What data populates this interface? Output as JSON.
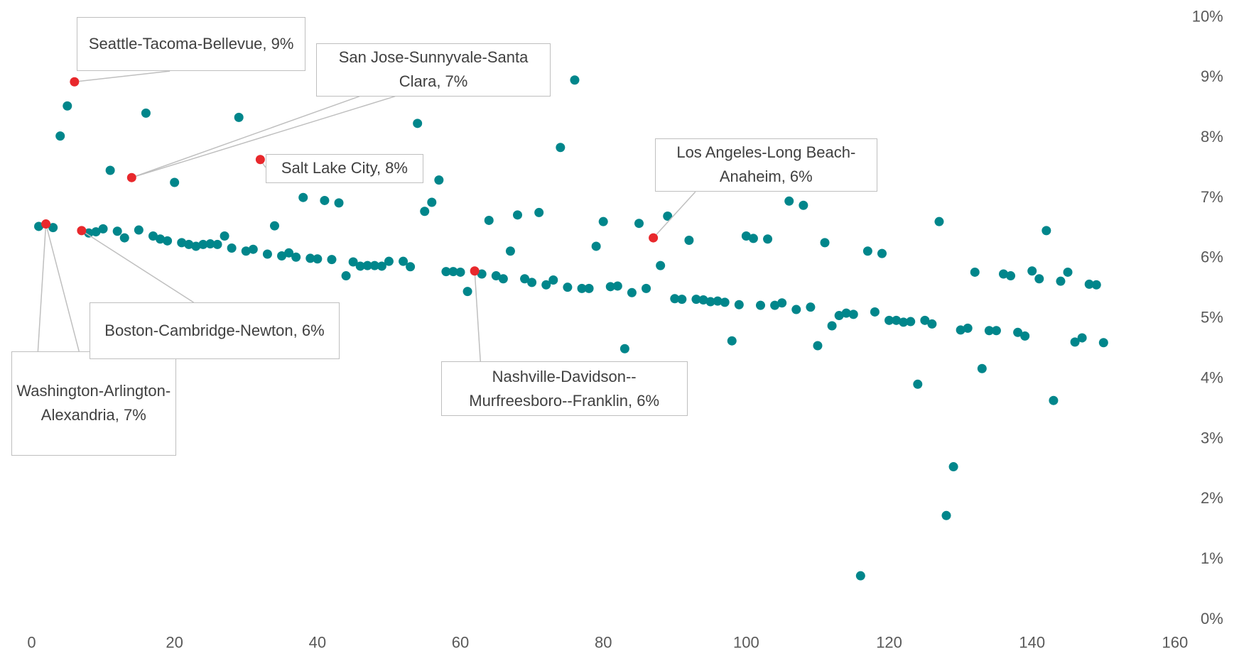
{
  "chart_data": {
    "type": "scatter",
    "xlim": [
      0,
      160
    ],
    "xticks": [
      0,
      20,
      40,
      60,
      80,
      100,
      120,
      140,
      160
    ],
    "ylim": [
      0,
      10
    ],
    "yticks": [
      {
        "value": 0,
        "label": "0%"
      },
      {
        "value": 1,
        "label": "1%"
      },
      {
        "value": 2,
        "label": "2%"
      },
      {
        "value": 3,
        "label": "3%"
      },
      {
        "value": 4,
        "label": "4%"
      },
      {
        "value": 5,
        "label": "5%"
      },
      {
        "value": 6,
        "label": "6%"
      },
      {
        "value": 7,
        "label": "7%"
      },
      {
        "value": 8,
        "label": "8%"
      },
      {
        "value": 9,
        "label": "9%"
      },
      {
        "value": 10,
        "label": "10%"
      }
    ],
    "grid": false,
    "series": [
      {
        "color": "#00868b",
        "x": [
          1,
          3,
          4,
          5,
          8,
          9,
          10,
          11,
          12,
          13,
          15,
          16,
          17,
          18,
          19,
          20,
          21,
          22,
          23,
          24,
          25,
          26,
          27,
          28,
          29,
          30,
          31,
          33,
          34,
          35,
          36,
          37,
          38,
          39,
          40,
          41,
          42,
          43,
          44,
          45,
          46,
          47,
          48,
          49,
          50,
          52,
          53,
          54,
          55,
          56,
          57,
          58,
          59,
          60,
          61,
          63,
          64,
          65,
          66,
          67,
          68,
          69,
          70,
          71,
          72,
          73,
          74,
          75,
          76,
          77,
          78,
          79,
          80,
          81,
          82,
          83,
          84,
          85,
          86,
          88,
          89,
          90,
          91,
          92,
          93,
          94,
          95,
          96,
          97,
          98,
          99,
          100,
          101,
          102,
          103,
          104,
          105,
          106,
          107,
          108,
          109,
          110,
          111,
          112,
          113,
          114,
          115,
          116,
          117,
          118,
          119,
          120,
          121,
          122,
          123,
          124,
          125,
          126,
          127,
          128,
          129,
          130,
          131,
          132,
          133,
          134,
          135,
          136,
          137,
          138,
          139,
          140,
          141,
          142,
          143,
          144,
          145,
          146,
          147,
          148,
          149,
          150
        ],
        "y": [
          6.53,
          6.51,
          8.03,
          8.53,
          6.42,
          6.44,
          6.49,
          7.46,
          6.45,
          6.34,
          6.47,
          8.41,
          6.37,
          6.32,
          6.29,
          7.26,
          6.26,
          6.23,
          6.2,
          6.23,
          6.24,
          6.23,
          6.37,
          6.17,
          8.34,
          6.12,
          6.15,
          6.07,
          6.54,
          6.04,
          6.09,
          6.02,
          7.01,
          6.0,
          5.99,
          6.96,
          5.98,
          6.92,
          5.71,
          5.94,
          5.87,
          5.88,
          5.88,
          5.87,
          5.95,
          5.95,
          5.86,
          8.24,
          6.78,
          6.93,
          7.3,
          5.78,
          5.78,
          5.77,
          5.45,
          5.74,
          6.63,
          5.71,
          5.66,
          6.12,
          6.72,
          5.66,
          5.6,
          6.76,
          5.56,
          5.64,
          7.84,
          5.52,
          8.96,
          5.5,
          5.5,
          6.2,
          6.61,
          5.53,
          5.54,
          4.5,
          5.43,
          6.58,
          5.5,
          5.88,
          6.7,
          5.33,
          5.32,
          6.3,
          5.32,
          5.31,
          5.28,
          5.29,
          5.27,
          4.63,
          5.23,
          6.37,
          6.33,
          5.22,
          6.32,
          5.22,
          5.26,
          6.95,
          5.15,
          6.88,
          5.19,
          4.55,
          6.26,
          4.88,
          5.05,
          5.09,
          5.07,
          0.73,
          6.12,
          5.11,
          6.08,
          4.97,
          4.97,
          4.94,
          4.95,
          3.91,
          4.97,
          4.91,
          6.61,
          1.73,
          2.54,
          4.81,
          4.84,
          5.77,
          4.17,
          4.8,
          4.8,
          5.74,
          5.71,
          4.77,
          4.71,
          5.79,
          5.66,
          6.46,
          3.64,
          5.62,
          5.77,
          4.61,
          4.68,
          5.57,
          5.56,
          4.6
        ]
      },
      {
        "color": "#e8282c",
        "x": [
          2,
          6,
          7,
          14,
          32,
          62,
          87
        ],
        "y": [
          6.57,
          8.93,
          6.46,
          7.34,
          7.64,
          5.79,
          6.34
        ],
        "labels": [
          "Washington-Arlington-Alexandria, 7%",
          "Seattle-Tacoma-Bellevue, 9%",
          "Boston-Cambridge-Newton, 6%",
          "San Jose-Sunnyvale-Santa Clara, 7%",
          "Salt Lake City, 8%",
          "Nashville-Davidson--Murfreesboro--Franklin, 6%",
          "Los Angeles-Long Beach-Anaheim, 6%"
        ]
      }
    ]
  }
}
